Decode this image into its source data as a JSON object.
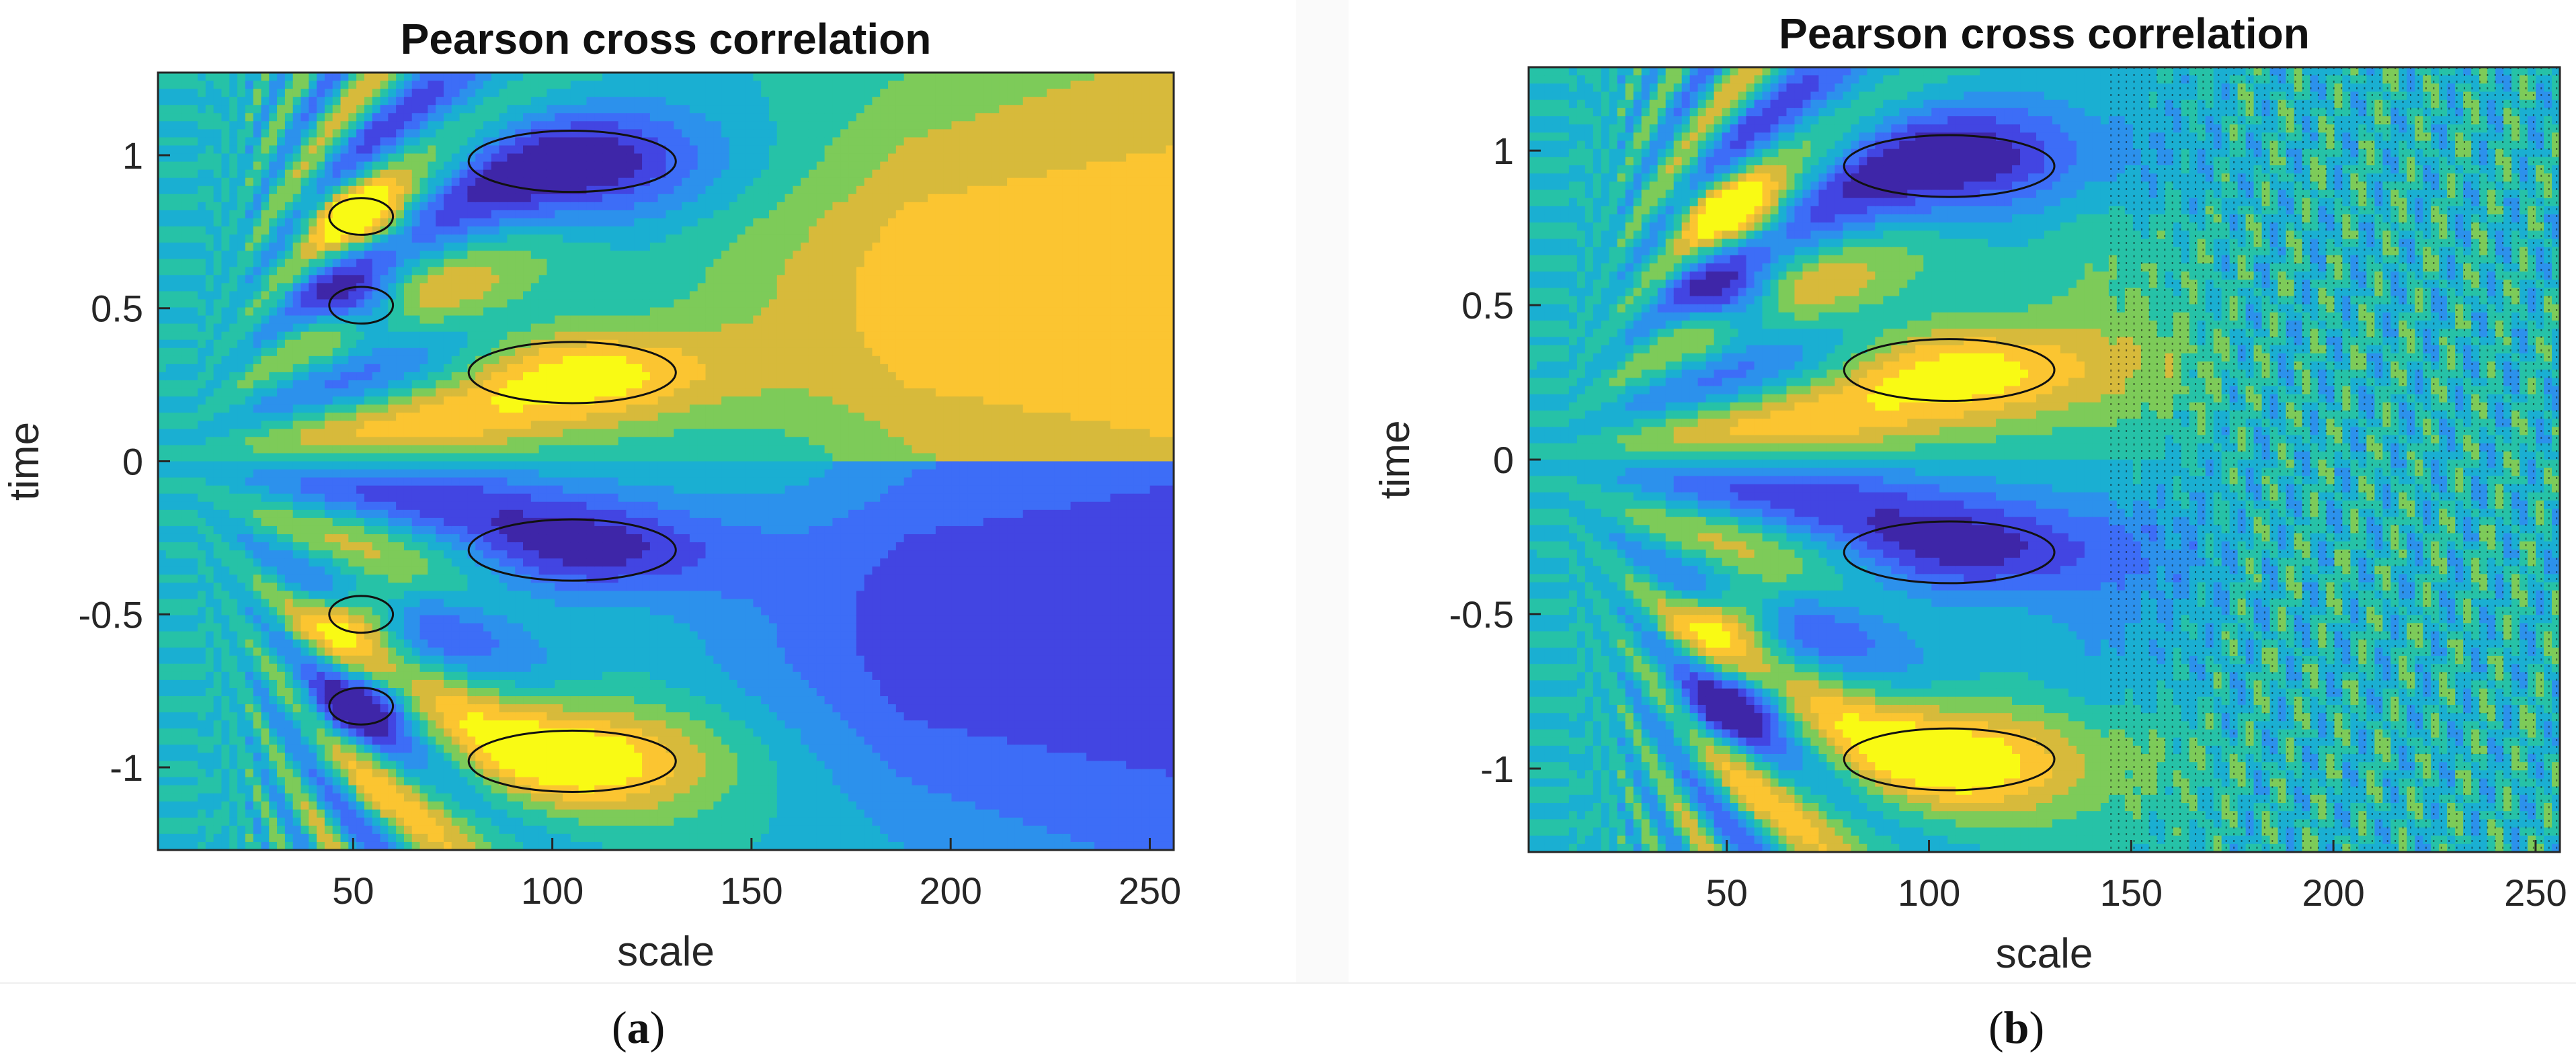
{
  "colors": {
    "levels": [
      "#3E26A8",
      "#4245E2",
      "#3D6DF7",
      "#2C91EC",
      "#1AAFD2",
      "#26C2A7",
      "#7DCB59",
      "#D7BA3B",
      "#FBC531",
      "#F9FA14"
    ],
    "contour_line": "#111111"
  },
  "chart_data": [
    {
      "panel": "a",
      "type": "heatmap",
      "subtype": "filled contour",
      "title": "Pearson cross correlation",
      "xlabel": "scale",
      "ylabel": "time",
      "xlim": [
        1,
        256
      ],
      "ylim": [
        -1.27,
        1.27
      ],
      "xticks": [
        50,
        100,
        150,
        200,
        250
      ],
      "yticks": [
        1,
        0.5,
        0,
        -0.5,
        -1
      ],
      "yticklabels": [
        "1",
        "0.5",
        "0",
        "-0.5",
        "-1"
      ],
      "value_range": [
        -1,
        1
      ],
      "features": [
        {
          "type": "max",
          "scale": 105,
          "time": 0.29,
          "value": 0.95
        },
        {
          "type": "min",
          "scale": 105,
          "time": -0.29,
          "value": -0.95
        },
        {
          "type": "min",
          "scale": 105,
          "time": 0.98,
          "value": -0.9
        },
        {
          "type": "max",
          "scale": 105,
          "time": -0.98,
          "value": 0.95
        },
        {
          "type": "max",
          "scale": 52,
          "time": 0.8,
          "value": 0.8
        },
        {
          "type": "min",
          "scale": 52,
          "time": 0.51,
          "value": -0.8
        },
        {
          "type": "max",
          "scale": 52,
          "time": -0.5,
          "value": 0.8
        },
        {
          "type": "min",
          "scale": 52,
          "time": -0.8,
          "value": -0.8
        }
      ]
    },
    {
      "panel": "b",
      "type": "heatmap",
      "subtype": "filled contour",
      "title": "Pearson cross correlation",
      "xlabel": "scale",
      "ylabel": "time",
      "xlim": [
        1,
        256
      ],
      "ylim": [
        -1.27,
        1.27
      ],
      "xticks": [
        50,
        100,
        150,
        200,
        250
      ],
      "yticks": [
        1,
        0.5,
        0,
        -0.5,
        -1
      ],
      "yticklabels": [
        "1",
        "0.5",
        "0",
        "-0.5",
        "-1"
      ],
      "value_range": [
        -1,
        1
      ],
      "features": [
        {
          "type": "max",
          "scale": 105,
          "time": 0.29,
          "value": 0.95
        },
        {
          "type": "min",
          "scale": 105,
          "time": -0.3,
          "value": -0.95
        },
        {
          "type": "min",
          "scale": 105,
          "time": 0.95,
          "value": -0.9
        },
        {
          "type": "max",
          "scale": 105,
          "time": -0.97,
          "value": 0.95
        },
        {
          "type": "noise_region",
          "scale_from": 140,
          "scale_to": 256,
          "value": 0.0
        }
      ]
    }
  ],
  "captions": {
    "a": {
      "open": "(",
      "letter": "a",
      "close": ")"
    },
    "b": {
      "open": "(",
      "letter": "b",
      "close": ")"
    }
  }
}
